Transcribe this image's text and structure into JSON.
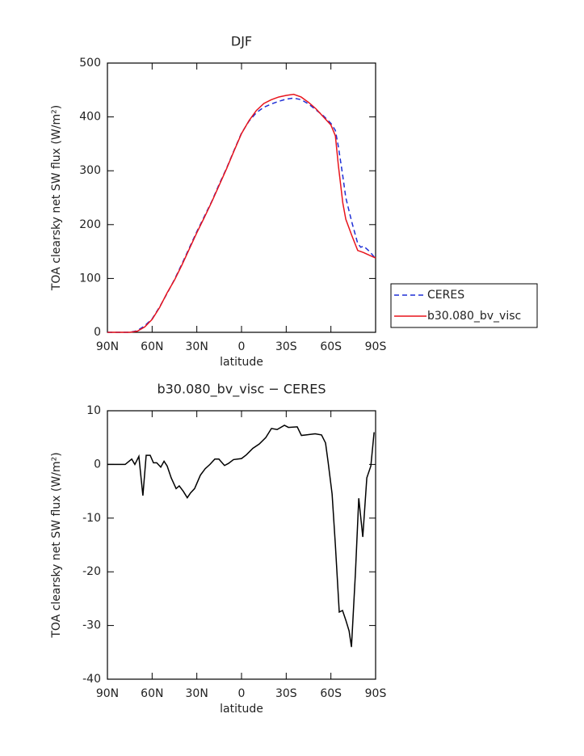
{
  "chart_data": [
    {
      "type": "line",
      "title": "DJF",
      "x_label": "latitude",
      "y_label": "TOA clearsky net SW flux (W/m²)",
      "x": [
        90,
        85,
        80,
        75,
        70,
        65,
        60,
        55,
        50,
        45,
        40,
        35,
        30,
        25,
        20,
        15,
        10,
        5,
        0,
        -5,
        -10,
        -15,
        -20,
        -25,
        -30,
        -35,
        -40,
        -45,
        -50,
        -55,
        -60,
        -63,
        -65,
        -68,
        -70,
        -74,
        -78,
        -80,
        -82,
        -86,
        -90
      ],
      "series": [
        {
          "name": "CERES",
          "color": "#1f2fd6",
          "dash": true,
          "values": [
            0,
            0,
            0,
            0,
            3,
            12,
            25,
            47,
            72,
            98,
            127,
            157,
            187,
            215,
            243,
            275,
            305,
            338,
            370,
            392,
            408,
            418,
            424,
            429,
            433,
            435,
            432,
            424,
            413,
            402,
            388,
            375,
            345,
            290,
            250,
            205,
            165,
            158,
            160,
            150,
            137
          ]
        },
        {
          "name": "b30.080_bv_visc",
          "color": "#e8141c",
          "dash": false,
          "values": [
            0,
            0,
            0,
            0,
            2,
            10,
            24,
            46,
            73,
            97,
            125,
            155,
            185,
            213,
            242,
            273,
            304,
            337,
            369,
            393,
            412,
            425,
            432,
            437,
            440,
            442,
            437,
            427,
            415,
            400,
            385,
            365,
            310,
            240,
            210,
            180,
            152,
            150,
            148,
            143,
            138
          ]
        }
      ],
      "xlim": [
        90,
        -90
      ],
      "xticks": [
        {
          "value": 90,
          "label": "90N"
        },
        {
          "value": 60,
          "label": "60N"
        },
        {
          "value": 30,
          "label": "30N"
        },
        0,
        {
          "value": -30,
          "label": "30S"
        },
        {
          "value": -60,
          "label": "60S"
        },
        {
          "value": -90,
          "label": "90S"
        }
      ],
      "ylim": [
        0,
        500
      ],
      "yticks": [
        0,
        100,
        200,
        300,
        400,
        500
      ],
      "legend": "outside-right"
    },
    {
      "type": "line",
      "title": "b30.080_bv_visc − CERES",
      "x_label": "latitude",
      "y_label": "TOA clearsky net SW flux (W/m²)",
      "x": [
        90,
        78.1,
        73.7,
        71.6,
        68.9,
        66.2,
        64,
        61.3,
        59.1,
        56.9,
        54.2,
        52,
        49.9,
        47.2,
        43.9,
        41.8,
        39.1,
        36.4,
        34.2,
        31.5,
        27.6,
        24.4,
        21.2,
        17.9,
        15.2,
        11.4,
        8.7,
        5.4,
        0,
        -3.3,
        -7.6,
        -11.9,
        -16.3,
        -20.1,
        -23.9,
        -28.8,
        -31.5,
        -37.4,
        -40.2,
        -43.4,
        -49.4,
        -53.7,
        -56.4,
        -58.1,
        -60.8,
        -63,
        -65.6,
        -67.8,
        -70,
        -72.2,
        -73.8,
        -76.5,
        -78.7,
        -81.4,
        -84.1,
        -86.8,
        -89
      ],
      "values": [
        0,
        0,
        1,
        0,
        1.5,
        -5.8,
        1.7,
        1.7,
        0.3,
        0.3,
        -0.5,
        0.6,
        -0.3,
        -2.5,
        -4.5,
        -4,
        -5,
        -6.2,
        -5.3,
        -4.5,
        -2,
        -0.8,
        0,
        1,
        1,
        -0.2,
        0.2,
        0.9,
        1.1,
        1.8,
        3,
        3.8,
        5,
        6.7,
        6.5,
        7.3,
        6.9,
        7,
        5.4,
        5.5,
        5.7,
        5.5,
        4,
        0.5,
        -5.5,
        -15,
        -27.5,
        -27.2,
        -29,
        -31,
        -34,
        -20,
        -6.3,
        -13.5,
        -2.5,
        -0.3,
        6
      ],
      "color": "#000000",
      "xlim": [
        90,
        -90
      ],
      "xticks": [
        {
          "value": 90,
          "label": "90N"
        },
        {
          "value": 60,
          "label": "60N"
        },
        {
          "value": 30,
          "label": "30N"
        },
        0,
        {
          "value": -30,
          "label": "30S"
        },
        {
          "value": -60,
          "label": "60S"
        },
        {
          "value": -90,
          "label": "90S"
        }
      ],
      "ylim": [
        -40,
        10
      ],
      "yticks": [
        -40,
        -30,
        -20,
        -10,
        0,
        10
      ]
    }
  ]
}
